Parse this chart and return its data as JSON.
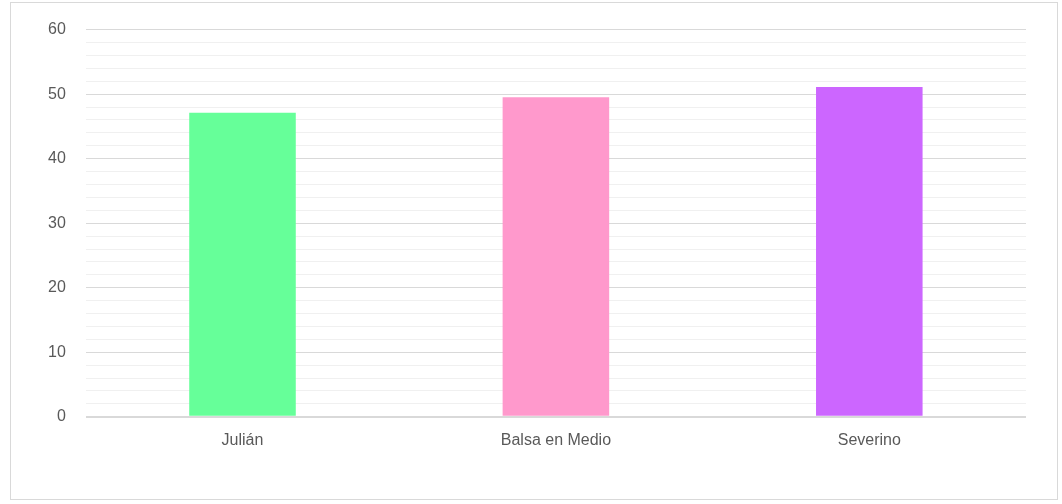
{
  "chart_data": {
    "type": "bar",
    "categories": [
      "Julián",
      "Balsa en Medio",
      "Severino"
    ],
    "values": [
      47.1,
      49.5,
      51.1
    ],
    "colors": [
      "#66ff99",
      "#ff99cc",
      "#cc66ff"
    ],
    "ylim": [
      0,
      60
    ],
    "yticks": [
      0,
      {
        "value": 2,
        "label": null
      },
      {
        "value": 4,
        "label": null
      },
      {
        "value": 6,
        "label": null
      },
      {
        "value": 8,
        "label": null
      },
      10,
      {
        "value": 12,
        "label": null
      },
      {
        "value": 14,
        "label": null
      },
      {
        "value": 16,
        "label": null
      },
      {
        "value": 18,
        "label": null
      },
      20,
      {
        "value": 22,
        "label": null
      },
      {
        "value": 24,
        "label": null
      },
      {
        "value": 26,
        "label": null
      },
      {
        "value": 28,
        "label": null
      },
      30,
      {
        "value": 32,
        "label": null
      },
      {
        "value": 34,
        "label": null
      },
      {
        "value": 36,
        "label": null
      },
      {
        "value": 38,
        "label": null
      },
      40,
      {
        "value": 42,
        "label": null
      },
      {
        "value": 44,
        "label": null
      },
      {
        "value": 46,
        "label": null
      },
      {
        "value": 48,
        "label": null
      },
      50,
      {
        "value": 52,
        "label": null
      },
      {
        "value": 54,
        "label": null
      },
      {
        "value": 56,
        "label": null
      },
      {
        "value": 58,
        "label": null
      },
      60
    ],
    "grid": "y",
    "legend": false
  }
}
